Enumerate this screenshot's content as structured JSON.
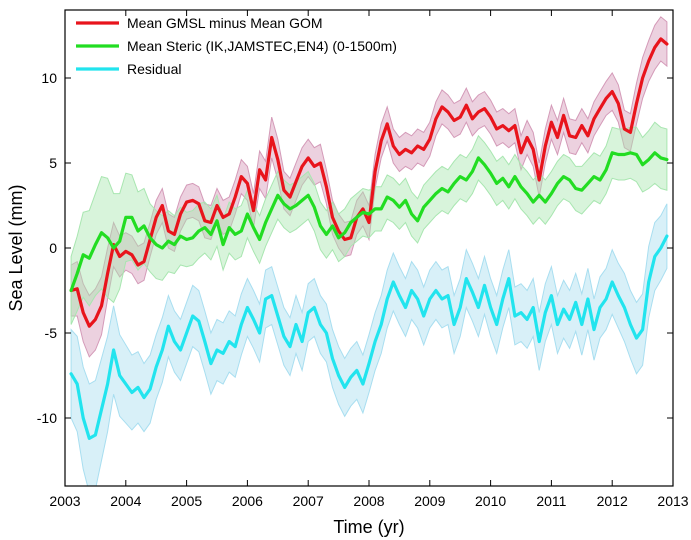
{
  "chart_data": {
    "type": "line",
    "xlabel": "Time (yr)",
    "ylabel": "Sea Level (mm)",
    "xlim": [
      2003,
      2013
    ],
    "ylim": [
      -14,
      14
    ],
    "xticks": [
      2003,
      2004,
      2005,
      2006,
      2007,
      2008,
      2009,
      2010,
      2011,
      2012,
      2013
    ],
    "yticks": [
      -10,
      -5,
      0,
      5,
      10
    ],
    "grid": false,
    "legend_position": "top-left",
    "series": [
      {
        "name": "Mean GMSL minus Mean GOM",
        "color": "#e8141c",
        "band_color": "#d49ab8",
        "x": [
          2003.1,
          2003.2,
          2003.3,
          2003.4,
          2003.5,
          2003.6,
          2003.7,
          2003.8,
          2003.9,
          2004.0,
          2004.1,
          2004.2,
          2004.3,
          2004.4,
          2004.5,
          2004.6,
          2004.7,
          2004.8,
          2004.9,
          2005.0,
          2005.1,
          2005.2,
          2005.3,
          2005.4,
          2005.5,
          2005.6,
          2005.7,
          2005.8,
          2005.9,
          2006.0,
          2006.1,
          2006.2,
          2006.3,
          2006.4,
          2006.5,
          2006.6,
          2006.7,
          2006.8,
          2006.9,
          2007.0,
          2007.1,
          2007.2,
          2007.3,
          2007.4,
          2007.5,
          2007.6,
          2007.7,
          2007.8,
          2007.9,
          2008.0,
          2008.1,
          2008.2,
          2008.3,
          2008.4,
          2008.5,
          2008.6,
          2008.7,
          2008.8,
          2008.9,
          2009.0,
          2009.1,
          2009.2,
          2009.3,
          2009.4,
          2009.5,
          2009.6,
          2009.7,
          2009.8,
          2009.9,
          2010.0,
          2010.1,
          2010.2,
          2010.3,
          2010.4,
          2010.5,
          2010.6,
          2010.7,
          2010.8,
          2010.9,
          2011.0,
          2011.1,
          2011.2,
          2011.3,
          2011.4,
          2011.5,
          2011.6,
          2011.7,
          2011.8,
          2011.9,
          2012.0,
          2012.1,
          2012.2,
          2012.3,
          2012.4,
          2012.5,
          2012.6,
          2012.7,
          2012.8,
          2012.9
        ],
        "values": [
          -2.5,
          -2.4,
          -3.8,
          -4.6,
          -4.2,
          -3.4,
          -1.5,
          0.2,
          -0.5,
          -0.2,
          -0.4,
          -1.0,
          -0.8,
          0.5,
          1.8,
          2.5,
          1.0,
          0.8,
          2.0,
          2.7,
          2.8,
          2.6,
          1.6,
          1.5,
          2.5,
          1.8,
          2.0,
          3.0,
          4.2,
          3.8,
          2.2,
          4.6,
          4.0,
          6.5,
          5.2,
          3.4,
          3.0,
          3.9,
          4.8,
          5.3,
          4.8,
          5.0,
          3.6,
          1.8,
          1.0,
          0.5,
          0.6,
          1.8,
          2.3,
          1.5,
          4.5,
          6.3,
          7.3,
          6.0,
          5.5,
          5.8,
          5.6,
          6.0,
          5.8,
          6.4,
          7.6,
          8.3,
          8.0,
          7.5,
          7.7,
          8.4,
          7.6,
          8.0,
          8.2,
          7.7,
          7.0,
          7.2,
          6.9,
          7.2,
          5.6,
          6.5,
          5.8,
          4.0,
          6.0,
          7.4,
          6.5,
          7.8,
          6.6,
          6.5,
          7.2,
          6.6,
          7.6,
          8.2,
          8.8,
          9.2,
          8.5,
          7.0,
          6.8,
          8.5,
          10.0,
          11.0,
          11.8,
          12.3,
          12.0
        ],
        "band_halfwidth": [
          1.5,
          1.6,
          1.7,
          1.8,
          1.8,
          1.7,
          1.5,
          1.3,
          1.2,
          1.1,
          1.1,
          1.1,
          1.1,
          1.0,
          1.0,
          1.0,
          1.0,
          1.0,
          1.0,
          1.0,
          1.0,
          1.0,
          1.0,
          1.0,
          1.0,
          1.0,
          1.0,
          1.0,
          1.0,
          1.0,
          1.0,
          1.1,
          1.1,
          1.2,
          1.2,
          1.1,
          1.1,
          1.1,
          1.1,
          1.1,
          1.1,
          1.1,
          1.0,
          1.0,
          1.0,
          1.0,
          1.0,
          1.0,
          1.0,
          1.0,
          1.0,
          1.0,
          1.0,
          1.0,
          1.0,
          1.0,
          1.0,
          1.0,
          1.0,
          1.0,
          1.0,
          1.0,
          1.0,
          1.0,
          1.0,
          1.0,
          1.0,
          1.0,
          1.0,
          1.0,
          1.0,
          1.0,
          1.0,
          1.0,
          1.0,
          1.0,
          1.0,
          1.0,
          1.0,
          1.0,
          1.0,
          1.0,
          1.0,
          1.0,
          1.0,
          1.0,
          1.0,
          1.0,
          1.0,
          1.1,
          1.1,
          1.1,
          1.1,
          1.2,
          1.2,
          1.2,
          1.3,
          1.3,
          1.3
        ]
      },
      {
        "name": "Mean Steric (IK,JAMSTEC,EN4) (0-1500m)",
        "color": "#22dd22",
        "band_color": "#a8e6b0",
        "x": [
          2003.1,
          2003.2,
          2003.3,
          2003.4,
          2003.5,
          2003.6,
          2003.7,
          2003.8,
          2003.9,
          2004.0,
          2004.1,
          2004.2,
          2004.3,
          2004.4,
          2004.5,
          2004.6,
          2004.7,
          2004.8,
          2004.9,
          2005.0,
          2005.1,
          2005.2,
          2005.3,
          2005.4,
          2005.5,
          2005.6,
          2005.7,
          2005.8,
          2005.9,
          2006.0,
          2006.1,
          2006.2,
          2006.3,
          2006.4,
          2006.5,
          2006.6,
          2006.7,
          2006.8,
          2006.9,
          2007.0,
          2007.1,
          2007.2,
          2007.3,
          2007.4,
          2007.5,
          2007.6,
          2007.7,
          2007.8,
          2007.9,
          2008.0,
          2008.1,
          2008.2,
          2008.3,
          2008.4,
          2008.5,
          2008.6,
          2008.7,
          2008.8,
          2008.9,
          2009.0,
          2009.1,
          2009.2,
          2009.3,
          2009.4,
          2009.5,
          2009.6,
          2009.7,
          2009.8,
          2009.9,
          2010.0,
          2010.1,
          2010.2,
          2010.3,
          2010.4,
          2010.5,
          2010.6,
          2010.7,
          2010.8,
          2010.9,
          2011.0,
          2011.1,
          2011.2,
          2011.3,
          2011.4,
          2011.5,
          2011.6,
          2011.7,
          2011.8,
          2011.9,
          2012.0,
          2012.1,
          2012.2,
          2012.3,
          2012.4,
          2012.5,
          2012.6,
          2012.7,
          2012.8,
          2012.9
        ],
        "values": [
          -2.5,
          -1.5,
          -0.4,
          -0.6,
          0.2,
          0.9,
          0.6,
          0.0,
          0.4,
          1.8,
          1.8,
          1.0,
          1.3,
          0.6,
          0.2,
          0.0,
          0.4,
          0.2,
          0.7,
          0.5,
          0.6,
          1.0,
          1.2,
          0.8,
          1.6,
          0.2,
          1.2,
          0.8,
          1.0,
          2.0,
          1.2,
          0.5,
          1.5,
          2.3,
          3.1,
          2.6,
          2.3,
          2.5,
          2.8,
          3.1,
          2.4,
          1.3,
          0.8,
          1.3,
          0.6,
          0.9,
          1.5,
          1.8,
          2.1,
          2.0,
          2.3,
          2.3,
          3.0,
          2.8,
          2.4,
          2.8,
          2.0,
          1.6,
          2.4,
          2.8,
          3.2,
          3.5,
          3.3,
          3.8,
          4.2,
          4.0,
          4.5,
          5.3,
          4.9,
          4.4,
          3.8,
          4.1,
          3.6,
          4.2,
          3.6,
          3.2,
          2.7,
          3.1,
          2.7,
          3.2,
          3.8,
          4.2,
          4.0,
          3.5,
          3.4,
          3.8,
          4.2,
          4.0,
          4.6,
          5.6,
          5.5,
          5.5,
          5.6,
          5.5,
          4.9,
          5.2,
          5.6,
          5.3,
          5.2
        ],
        "band_halfwidth": [
          2.0,
          2.2,
          2.5,
          2.8,
          3.0,
          3.3,
          3.5,
          3.2,
          2.8,
          2.6,
          2.5,
          2.3,
          2.2,
          2.0,
          2.0,
          1.9,
          1.8,
          1.7,
          1.7,
          1.6,
          1.6,
          1.6,
          1.5,
          1.5,
          1.5,
          1.5,
          1.5,
          1.5,
          1.5,
          1.4,
          1.4,
          1.4,
          1.4,
          1.4,
          1.4,
          1.4,
          1.4,
          1.4,
          1.4,
          1.4,
          1.4,
          1.4,
          1.4,
          1.4,
          1.4,
          1.4,
          1.4,
          1.4,
          1.4,
          1.4,
          1.3,
          1.3,
          1.3,
          1.3,
          1.3,
          1.3,
          1.3,
          1.3,
          1.3,
          1.3,
          1.3,
          1.3,
          1.3,
          1.3,
          1.3,
          1.3,
          1.3,
          1.3,
          1.3,
          1.3,
          1.3,
          1.3,
          1.3,
          1.3,
          1.3,
          1.3,
          1.3,
          1.3,
          1.3,
          1.3,
          1.3,
          1.3,
          1.3,
          1.3,
          1.4,
          1.4,
          1.4,
          1.4,
          1.4,
          1.5,
          1.5,
          1.5,
          1.5,
          1.6,
          1.6,
          1.7,
          1.8,
          1.8,
          1.8
        ]
      },
      {
        "name": "Residual",
        "color": "#22e4ee",
        "band_color": "#a8def0",
        "x": [
          2003.1,
          2003.2,
          2003.3,
          2003.4,
          2003.5,
          2003.6,
          2003.7,
          2003.8,
          2003.9,
          2004.0,
          2004.1,
          2004.2,
          2004.3,
          2004.4,
          2004.5,
          2004.6,
          2004.7,
          2004.8,
          2004.9,
          2005.0,
          2005.1,
          2005.2,
          2005.3,
          2005.4,
          2005.5,
          2005.6,
          2005.7,
          2005.8,
          2005.9,
          2006.0,
          2006.1,
          2006.2,
          2006.3,
          2006.4,
          2006.5,
          2006.6,
          2006.7,
          2006.8,
          2006.9,
          2007.0,
          2007.1,
          2007.2,
          2007.3,
          2007.4,
          2007.5,
          2007.6,
          2007.7,
          2007.8,
          2007.9,
          2008.0,
          2008.1,
          2008.2,
          2008.3,
          2008.4,
          2008.5,
          2008.6,
          2008.7,
          2008.8,
          2008.9,
          2009.0,
          2009.1,
          2009.2,
          2009.3,
          2009.4,
          2009.5,
          2009.6,
          2009.7,
          2009.8,
          2009.9,
          2010.0,
          2010.1,
          2010.2,
          2010.3,
          2010.4,
          2010.5,
          2010.6,
          2010.7,
          2010.8,
          2010.9,
          2011.0,
          2011.1,
          2011.2,
          2011.3,
          2011.4,
          2011.5,
          2011.6,
          2011.7,
          2011.8,
          2011.9,
          2012.0,
          2012.1,
          2012.2,
          2012.3,
          2012.4,
          2012.5,
          2012.6,
          2012.7,
          2012.8,
          2012.9
        ],
        "values": [
          -7.4,
          -8.0,
          -10.0,
          -11.2,
          -11.0,
          -9.5,
          -8.0,
          -6.0,
          -7.5,
          -8.0,
          -8.5,
          -8.2,
          -8.8,
          -8.3,
          -7.0,
          -6.0,
          -4.6,
          -5.5,
          -6.0,
          -5.0,
          -4.0,
          -4.3,
          -5.5,
          -6.8,
          -6.0,
          -6.2,
          -5.5,
          -5.8,
          -4.5,
          -3.5,
          -4.2,
          -5.0,
          -3.0,
          -2.8,
          -4.0,
          -5.2,
          -5.8,
          -4.5,
          -5.5,
          -3.8,
          -3.5,
          -4.5,
          -5.0,
          -6.5,
          -7.5,
          -8.2,
          -7.6,
          -7.2,
          -8.0,
          -6.8,
          -5.5,
          -4.5,
          -3.0,
          -2.0,
          -2.8,
          -3.5,
          -2.5,
          -3.0,
          -4.0,
          -3.0,
          -2.5,
          -3.0,
          -2.8,
          -4.5,
          -3.5,
          -1.8,
          -2.6,
          -3.5,
          -2.2,
          -3.5,
          -4.5,
          -3.0,
          -1.8,
          -4.0,
          -3.8,
          -4.2,
          -3.5,
          -5.5,
          -3.8,
          -2.8,
          -4.5,
          -3.6,
          -4.2,
          -3.2,
          -4.5,
          -3.0,
          -4.8,
          -3.5,
          -3.0,
          -2.0,
          -2.8,
          -3.5,
          -4.5,
          -5.3,
          -4.8,
          -2.0,
          -0.5,
          0.0,
          0.7
        ],
        "band_halfwidth": [
          2.6,
          2.8,
          3.0,
          3.2,
          3.2,
          3.0,
          2.8,
          2.6,
          2.4,
          2.3,
          2.2,
          2.1,
          2.0,
          2.0,
          1.9,
          1.9,
          1.8,
          1.8,
          1.8,
          1.8,
          1.8,
          1.8,
          1.8,
          1.8,
          1.8,
          1.8,
          1.8,
          1.8,
          1.8,
          1.7,
          1.7,
          1.7,
          1.7,
          1.7,
          1.7,
          1.7,
          1.7,
          1.7,
          1.7,
          1.7,
          1.7,
          1.7,
          1.7,
          1.7,
          1.7,
          1.7,
          1.7,
          1.7,
          1.7,
          1.7,
          1.7,
          1.7,
          1.7,
          1.7,
          1.7,
          1.7,
          1.7,
          1.7,
          1.7,
          1.7,
          1.7,
          1.7,
          1.7,
          1.7,
          1.7,
          1.7,
          1.7,
          1.7,
          1.7,
          1.7,
          1.7,
          1.7,
          1.7,
          1.7,
          1.7,
          1.7,
          1.7,
          1.7,
          1.7,
          1.7,
          1.7,
          1.7,
          1.7,
          1.7,
          1.8,
          1.8,
          1.8,
          1.8,
          1.8,
          1.9,
          1.9,
          2.0,
          2.0,
          2.1,
          2.1,
          2.1,
          2.0,
          1.9,
          1.9
        ]
      }
    ]
  }
}
